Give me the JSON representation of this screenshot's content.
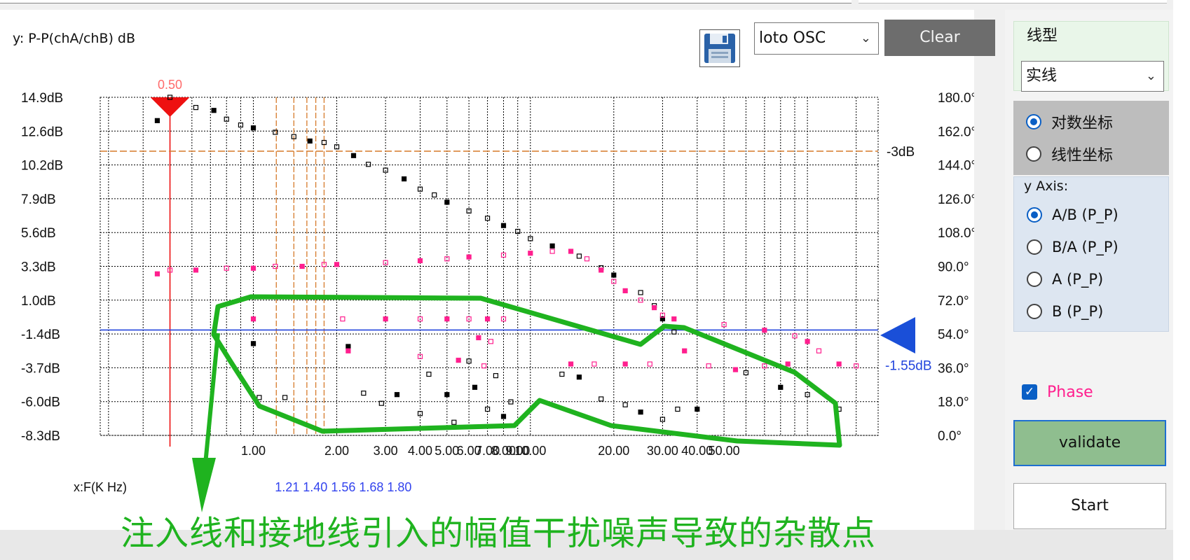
{
  "toolbar": {
    "y_axis_title": "y: P-P(chA/chB) dB",
    "save_icon": "floppy-disk-icon",
    "device_selected": "loto OSC",
    "clear_label": "Clear"
  },
  "chart_data": {
    "type": "scatter",
    "title": "",
    "ylabel": "y: P-P(chA/chB) dB",
    "xlabel": "x:F(K Hz)",
    "x_scale": "log",
    "left_ticks": [
      "14.9dB",
      "12.6dB",
      "10.2dB",
      "7.9dB",
      "5.6dB",
      "3.3dB",
      "1.0dB",
      "-1.4dB",
      "-3.7dB",
      "-6.0dB",
      "-8.3dB"
    ],
    "right_ticks": [
      "180.0°",
      "162.0°",
      "144.0°",
      "126.0°",
      "108.0°",
      "90.0°",
      "72.0°",
      "54.0°",
      "36.0°",
      "18.0°",
      "0.0°"
    ],
    "x_ticks": [
      "1.00",
      "2.00",
      "3.00",
      "4.00",
      "5.00",
      "6.00",
      "7.00",
      "8.00",
      "9.00",
      "10.00",
      "20.00",
      "30.00",
      "40.00",
      "50.00"
    ],
    "ylim_db": [
      -8.3,
      14.9
    ],
    "ylim_phase_deg": [
      0,
      180
    ],
    "marker_value_label": "0.50",
    "minus3db_label": "-3dB",
    "hline_value_label": "-1.55dB",
    "marker_freqs_label": "1.21   1.40   1.56   1.68   1.80",
    "series": [
      {
        "name": "",
        "color": "#000000",
        "values": [
          [
            0.45,
            13.3
          ],
          [
            0.5,
            14.9
          ],
          [
            0.62,
            14.2
          ],
          [
            0.72,
            14.0
          ],
          [
            0.8,
            13.4
          ],
          [
            0.9,
            13.0
          ],
          [
            1.0,
            12.8
          ],
          [
            1.2,
            12.5
          ],
          [
            1.4,
            12.2
          ],
          [
            1.6,
            11.9
          ],
          [
            1.8,
            11.8
          ],
          [
            2.0,
            11.5
          ],
          [
            2.3,
            10.9
          ],
          [
            2.6,
            10.3
          ],
          [
            3.0,
            9.9
          ],
          [
            3.5,
            9.3
          ],
          [
            4.0,
            8.6
          ],
          [
            4.5,
            8.2
          ],
          [
            5.0,
            7.7
          ],
          [
            6.0,
            7.1
          ],
          [
            7.0,
            6.6
          ],
          [
            8.0,
            6.1
          ],
          [
            9.0,
            5.7
          ],
          [
            10.0,
            5.2
          ],
          [
            12.0,
            4.7
          ],
          [
            15.0,
            4.0
          ],
          [
            18.0,
            3.2
          ],
          [
            20.0,
            2.7
          ],
          [
            25.0,
            1.5
          ],
          [
            28.0,
            0.6
          ],
          [
            30.0,
            -0.3
          ],
          [
            33.0,
            -1.2
          ],
          [
            60.0,
            -4.0
          ],
          [
            80.0,
            -5.0
          ],
          [
            100.0,
            -5.5
          ],
          [
            130.0,
            -6.5
          ],
          [
            1.0,
            -2.0
          ],
          [
            1.05,
            -5.7
          ],
          [
            1.3,
            -5.7
          ],
          [
            2.2,
            -2.2
          ],
          [
            2.5,
            -5.4
          ],
          [
            2.9,
            -6.1
          ],
          [
            3.3,
            -5.5
          ],
          [
            4.0,
            -6.8
          ],
          [
            4.3,
            -4.1
          ],
          [
            5.0,
            -5.5
          ],
          [
            5.3,
            -7.4
          ],
          [
            6.0,
            -3.2
          ],
          [
            6.3,
            -5.0
          ],
          [
            7.0,
            -6.5
          ],
          [
            7.5,
            -4.2
          ],
          [
            8.0,
            -7.0
          ],
          [
            8.5,
            -6.0
          ],
          [
            13.0,
            -4.1
          ],
          [
            15.0,
            -4.3
          ],
          [
            18.0,
            -5.8
          ],
          [
            22.0,
            -6.2
          ],
          [
            25.0,
            -6.7
          ],
          [
            30.0,
            -7.2
          ],
          [
            34.0,
            -6.5
          ],
          [
            40.0,
            -6.5
          ]
        ]
      },
      {
        "name": "Phase",
        "color": "#ff1f8e",
        "values": [
          [
            0.45,
            86
          ],
          [
            0.5,
            88
          ],
          [
            0.62,
            88
          ],
          [
            0.8,
            89
          ],
          [
            1.0,
            89
          ],
          [
            1.2,
            90
          ],
          [
            1.5,
            90
          ],
          [
            1.8,
            91
          ],
          [
            2.0,
            91
          ],
          [
            3.0,
            92
          ],
          [
            4.0,
            93
          ],
          [
            5.0,
            94
          ],
          [
            6.0,
            95
          ],
          [
            8.0,
            96
          ],
          [
            10.0,
            97
          ],
          [
            12.0,
            98
          ],
          [
            14.0,
            98
          ],
          [
            16.0,
            94
          ],
          [
            18.0,
            88
          ],
          [
            20.0,
            82
          ],
          [
            22.0,
            77
          ],
          [
            25.0,
            72
          ],
          [
            28.0,
            68
          ],
          [
            30.0,
            64
          ],
          [
            33.0,
            62
          ],
          [
            50.0,
            59
          ],
          [
            70.0,
            56
          ],
          [
            90.0,
            53
          ],
          [
            100.0,
            50
          ],
          [
            110.0,
            45
          ],
          [
            130.0,
            38
          ],
          [
            150.0,
            37
          ],
          [
            1.0,
            62
          ],
          [
            2.1,
            62
          ],
          [
            3.0,
            62
          ],
          [
            4.0,
            62
          ],
          [
            5.0,
            62
          ],
          [
            6.0,
            62
          ],
          [
            7.0,
            62
          ],
          [
            8.0,
            62
          ],
          [
            6.5,
            52
          ],
          [
            7.2,
            50
          ],
          [
            2.2,
            45
          ],
          [
            4.0,
            42
          ],
          [
            5.5,
            40
          ],
          [
            6.8,
            37
          ],
          [
            14.0,
            38
          ],
          [
            17.0,
            38
          ],
          [
            22.0,
            38
          ],
          [
            27.0,
            38
          ],
          [
            36.0,
            45
          ],
          [
            44.0,
            37
          ],
          [
            55.0,
            35
          ],
          [
            70.0,
            37
          ],
          [
            85.0,
            38
          ]
        ]
      }
    ]
  },
  "line_type": {
    "label": "线型",
    "selected": "实线"
  },
  "scale": {
    "options": [
      "对数坐标",
      "线性坐标"
    ],
    "selected_index": 0
  },
  "y_axis": {
    "label": "y Axis:",
    "options": [
      "A/B (P_P)",
      "B/A (P_P)",
      "A (P_P)",
      "B (P_P)"
    ],
    "selected_index": 0
  },
  "phase": {
    "label": "Phase",
    "checked": true,
    "label_color": "#ff1f8e"
  },
  "buttons": {
    "validate": "validate",
    "start": "Start"
  },
  "annotation": {
    "caption": "注入线和接地线引入的幅值干扰噪声导致的杂散点",
    "color": "#1fb31f"
  },
  "colors": {
    "magnitude": "#000000",
    "phase": "#ff1f8e",
    "marker": "#ee1111",
    "minus3db_line": "#d67a2a",
    "hline": "#2244dd",
    "annotation": "#1fb31f"
  }
}
